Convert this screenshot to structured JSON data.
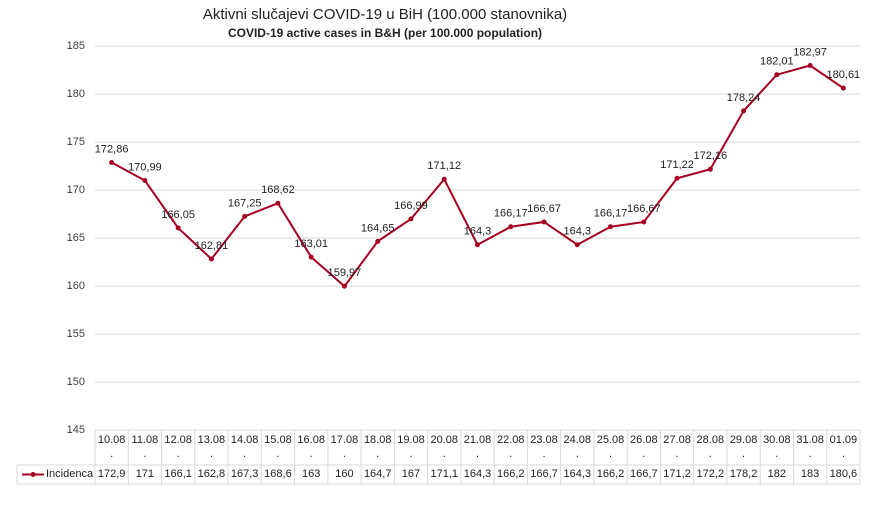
{
  "chart_data": {
    "type": "line",
    "title": "Aktivni slučajevi COVID-19 u BiH (100.000 stanovnika)",
    "subtitle": "COVID-19 active cases in B&H (per 100.000 population)",
    "categories": [
      "10.08\n.",
      "11.08\n.",
      "12.08\n.",
      "13.08\n.",
      "14.08\n.",
      "15.08\n.",
      "16.08\n.",
      "17.08\n.",
      "18.08\n.",
      "19.08\n.",
      "20.08\n.",
      "21.08\n.",
      "22.08\n.",
      "23.08\n.",
      "24.08\n.",
      "25.08\n.",
      "26.08\n.",
      "27.08\n.",
      "28.08\n.",
      "29.08\n.",
      "30.08\n.",
      "31.08\n.",
      "01.09\n."
    ],
    "series": [
      {
        "name": "Incidenca",
        "color": "#a50021",
        "values": [
          172.86,
          170.99,
          166.05,
          162.81,
          167.25,
          168.62,
          163.01,
          159.97,
          164.65,
          166.99,
          171.12,
          164.3,
          166.17,
          166.67,
          164.3,
          166.17,
          166.67,
          171.22,
          172.16,
          178.24,
          182.01,
          182.97,
          180.61
        ],
        "value_labels": [
          "172,86",
          "170,99",
          "166,05",
          "162,81",
          "167,25",
          "168,62",
          "163,01",
          "159,97",
          "164,65",
          "166,99",
          "171,12",
          "164,3",
          "166,17",
          "166,67",
          "164,3",
          "166,17",
          "166,67",
          "171,22",
          "172,16",
          "178,24",
          "182,01",
          "182,97",
          "180,61"
        ],
        "table_labels": [
          "172,9",
          "171",
          "166,1",
          "162,8",
          "167,3",
          "168,6",
          "163",
          "160",
          "164,7",
          "167",
          "171,1",
          "164,3",
          "166,2",
          "166,7",
          "164,3",
          "166,2",
          "166,7",
          "171,2",
          "172,2",
          "178,2",
          "182",
          "183",
          "180,6"
        ]
      }
    ],
    "ylim": [
      145,
      185
    ],
    "yticks": [
      145,
      150,
      155,
      160,
      165,
      170,
      175,
      180,
      185
    ],
    "grid": true
  }
}
